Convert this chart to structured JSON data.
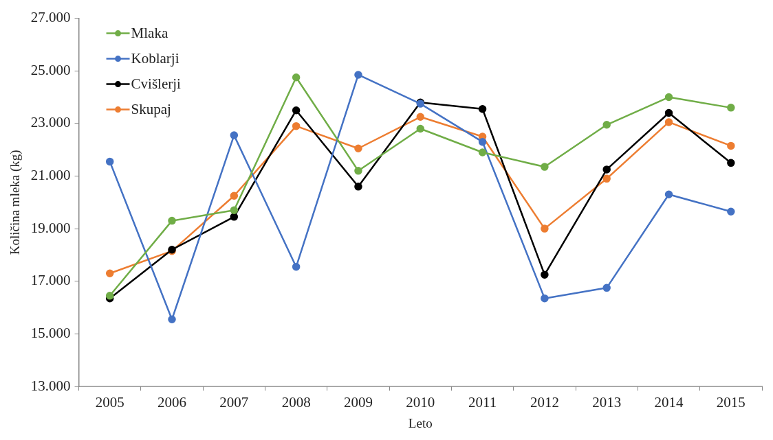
{
  "chart_data": {
    "type": "line",
    "xlabel": "Leto",
    "ylabel": "Količina mleka (kg)",
    "categories": [
      "2005",
      "2006",
      "2007",
      "2008",
      "2009",
      "2010",
      "2011",
      "2012",
      "2013",
      "2014",
      "2015"
    ],
    "series": [
      {
        "name": "Mlaka",
        "color": "#70ad47",
        "values": [
          16450,
          19300,
          19700,
          24750,
          21200,
          22800,
          21900,
          21350,
          22950,
          24000,
          23600
        ]
      },
      {
        "name": "Koblarji",
        "color": "#4472c4",
        "values": [
          21550,
          15550,
          22550,
          17550,
          24850,
          23750,
          22300,
          16350,
          16750,
          20300,
          19650
        ]
      },
      {
        "name": "Cvišlerji",
        "color": "#000000",
        "values": [
          16350,
          18200,
          19450,
          23500,
          20600,
          23800,
          23550,
          17250,
          21250,
          23400,
          21500
        ]
      },
      {
        "name": "Skupaj",
        "color": "#ed7d31",
        "values": [
          17300,
          18150,
          20250,
          22900,
          22050,
          23250,
          22500,
          19000,
          20900,
          23050,
          22150
        ]
      }
    ],
    "ylim": [
      13000,
      27000
    ],
    "yticks": [
      {
        "value": 13000,
        "label": "13.000"
      },
      {
        "value": 15000,
        "label": "15.000"
      },
      {
        "value": 17000,
        "label": "17.000"
      },
      {
        "value": 19000,
        "label": "19.000"
      },
      {
        "value": 21000,
        "label": "21.000"
      },
      {
        "value": 23000,
        "label": "23.000"
      },
      {
        "value": 25000,
        "label": "25.000"
      },
      {
        "value": 27000,
        "label": "27.000"
      }
    ],
    "grid": false,
    "legend": "top left",
    "marker": "circle",
    "line_style": "solid"
  }
}
